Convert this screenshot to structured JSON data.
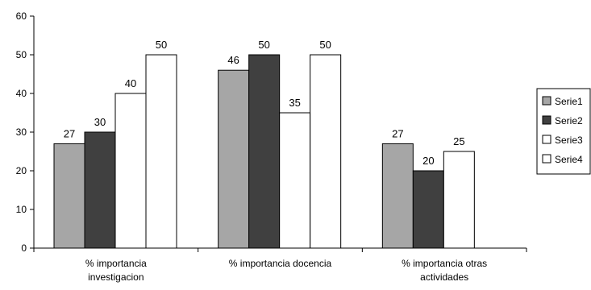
{
  "chart_data": {
    "type": "bar",
    "categories": [
      [
        "% importancia",
        "investigacion"
      ],
      [
        "% importancia docencia"
      ],
      [
        "% importancia otras",
        "actividades"
      ]
    ],
    "series": [
      {
        "name": "Serie1",
        "values": [
          27,
          46,
          27
        ],
        "color": "#a6a6a6"
      },
      {
        "name": "Serie2",
        "values": [
          30,
          50,
          20
        ],
        "color": "#404040"
      },
      {
        "name": "Serie3",
        "values": [
          40,
          35,
          25
        ],
        "color": "#ffffff"
      },
      {
        "name": "Serie4",
        "values": [
          50,
          50,
          null
        ],
        "color": "#ffffff"
      }
    ],
    "ylim": [
      0,
      60
    ],
    "yticks": [
      0,
      10,
      20,
      30,
      40,
      50,
      60
    ],
    "grid": false,
    "legend": "right",
    "title": "",
    "xlabel": "",
    "ylabel": ""
  }
}
